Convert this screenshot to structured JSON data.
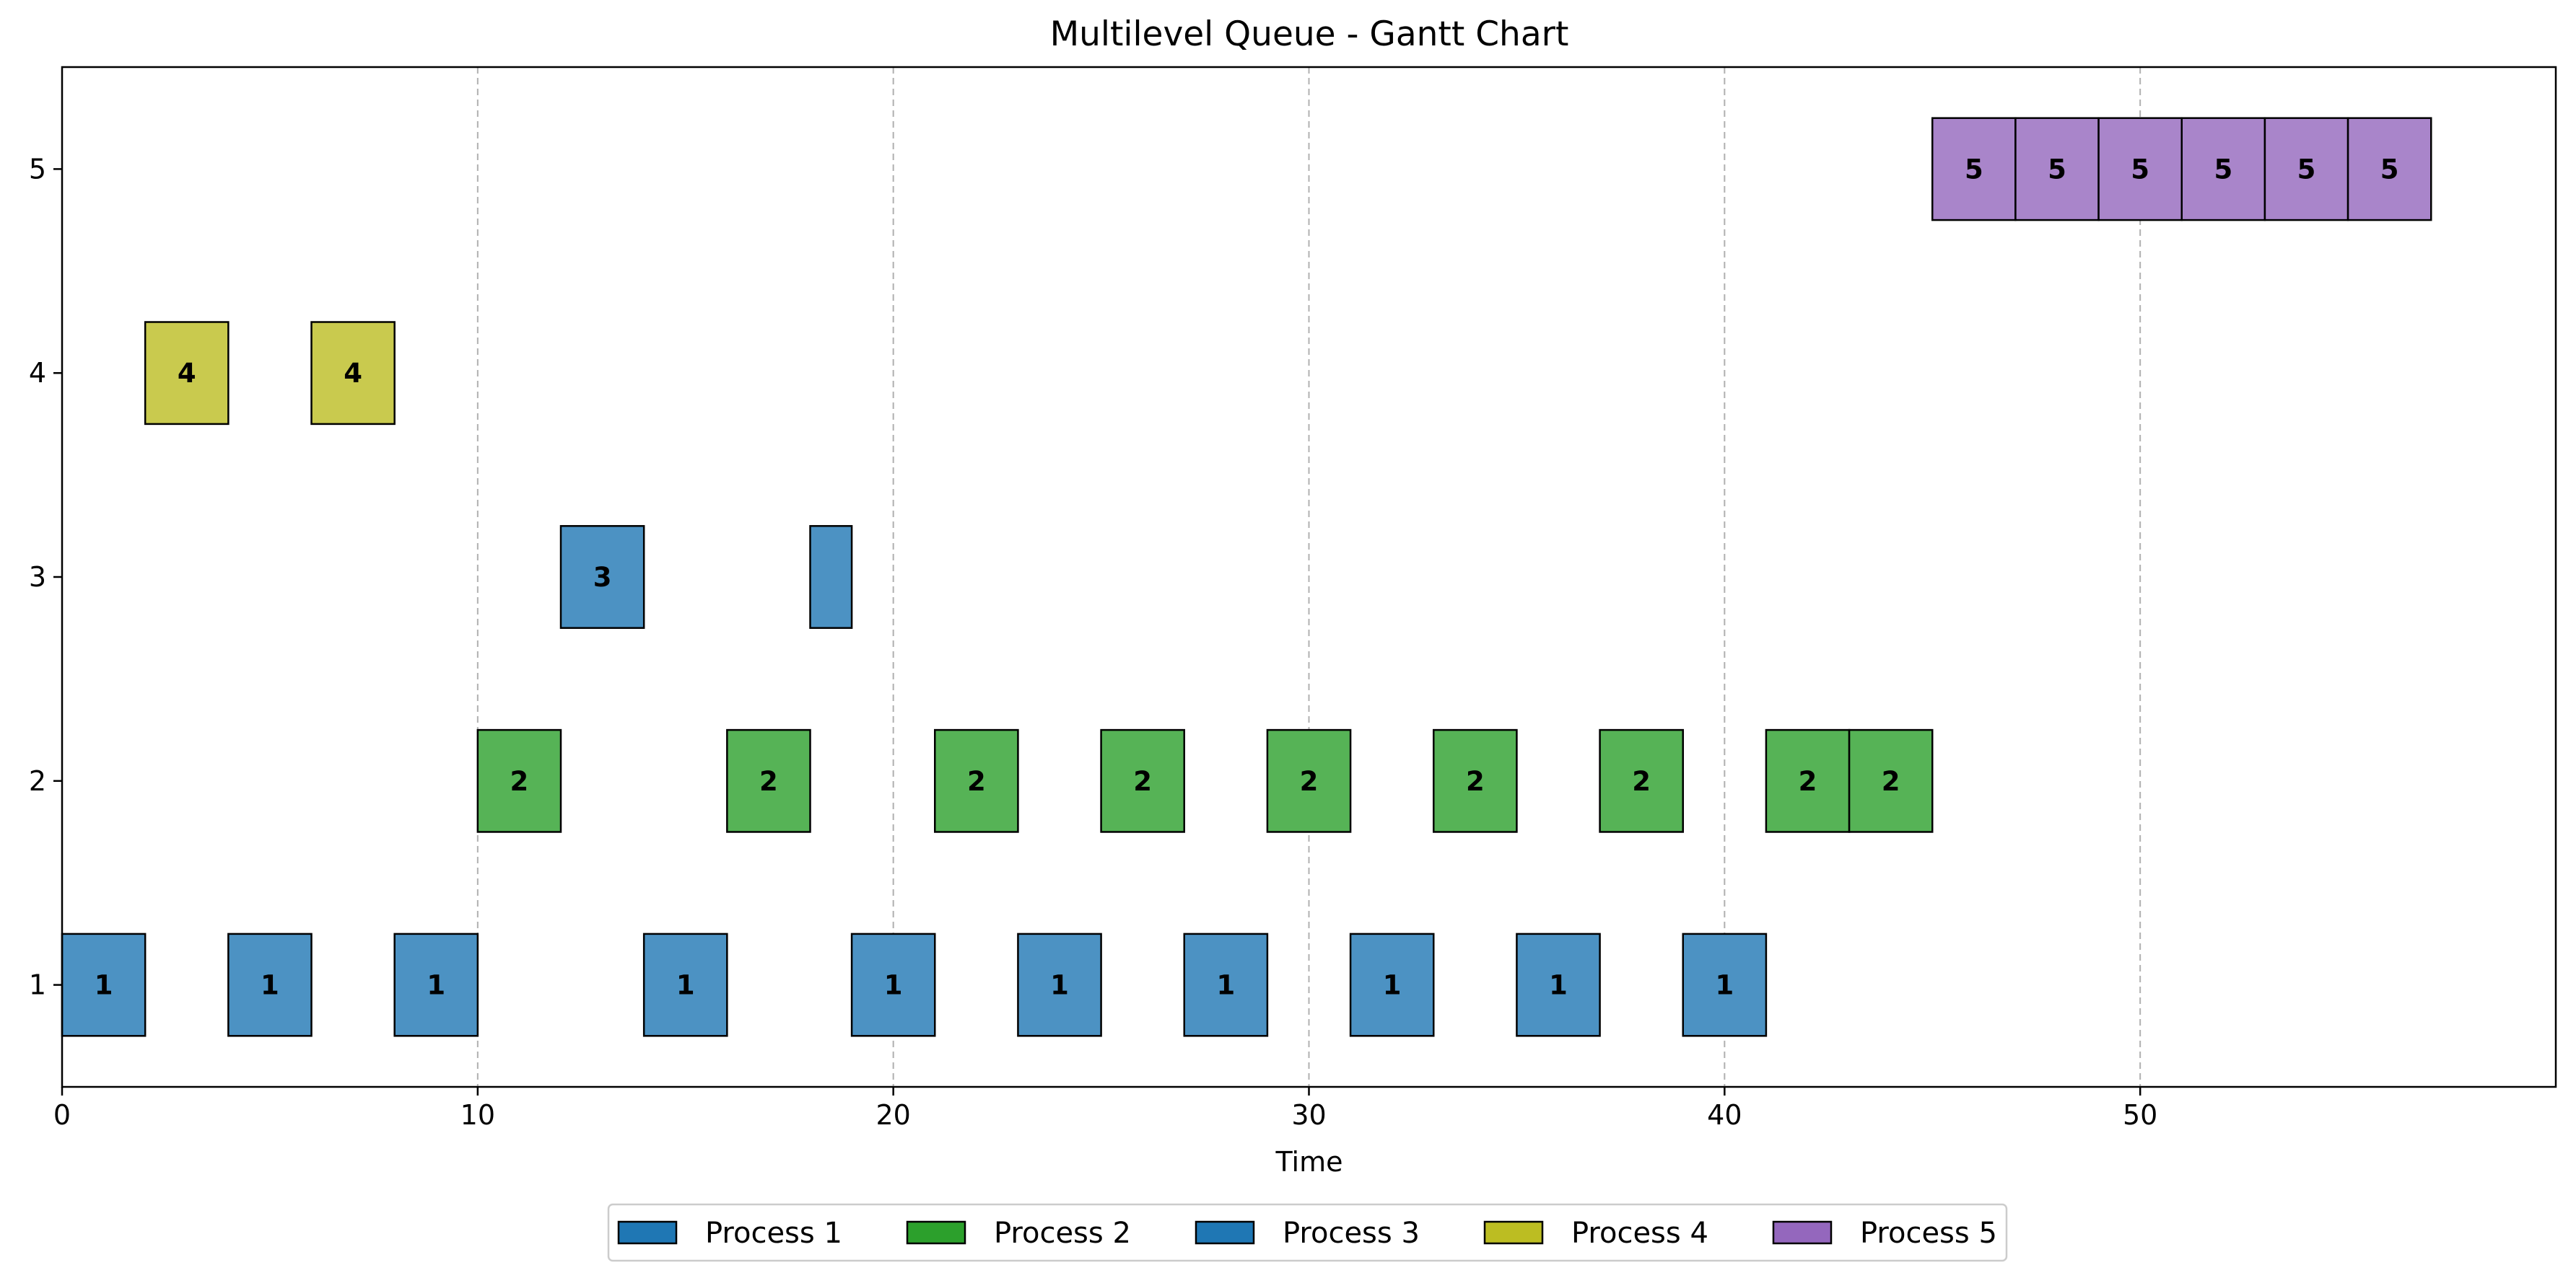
{
  "chart_data": {
    "type": "gantt",
    "title": "Multilevel Queue - Gantt Chart",
    "xlabel": "Time",
    "ylabel": "",
    "xlim": [
      0,
      60
    ],
    "ylim": [
      0.5,
      5.5
    ],
    "x_ticks": [
      0,
      10,
      20,
      30,
      40,
      50
    ],
    "y_ticks": [
      1,
      2,
      3,
      4,
      5
    ],
    "grid": "vertical dashed at x ticks",
    "legend_placement": "bottom-center below axes",
    "legend": [
      {
        "label": "Process 1",
        "color": "#1f77b4"
      },
      {
        "label": "Process 2",
        "color": "#2ca02c"
      },
      {
        "label": "Process 3",
        "color": "#1f77b4"
      },
      {
        "label": "Process 4",
        "color": "#bcbd22"
      },
      {
        "label": "Process 5",
        "color": "#9467bd"
      }
    ],
    "series": [
      {
        "name": "Process 1",
        "queue": 1,
        "color": "#1f77b4",
        "segments": [
          [
            0,
            2,
            "1"
          ],
          [
            4,
            6,
            "1"
          ],
          [
            8,
            10,
            "1"
          ],
          [
            14,
            16,
            "1"
          ],
          [
            19,
            21,
            "1"
          ],
          [
            23,
            25,
            "1"
          ],
          [
            27,
            29,
            "1"
          ],
          [
            31,
            33,
            "1"
          ],
          [
            35,
            37,
            "1"
          ],
          [
            39,
            41,
            "1"
          ]
        ]
      },
      {
        "name": "Process 2",
        "queue": 2,
        "color": "#2ca02c",
        "segments": [
          [
            10,
            12,
            "2"
          ],
          [
            16,
            18,
            "2"
          ],
          [
            21,
            23,
            "2"
          ],
          [
            25,
            27,
            "2"
          ],
          [
            29,
            31,
            "2"
          ],
          [
            33,
            35,
            "2"
          ],
          [
            37,
            39,
            "2"
          ],
          [
            41,
            43,
            "2"
          ],
          [
            43,
            45,
            "2"
          ]
        ]
      },
      {
        "name": "Process 3",
        "queue": 3,
        "color": "#1f77b4",
        "segments": [
          [
            12,
            14,
            "3"
          ],
          [
            18,
            19,
            ""
          ]
        ]
      },
      {
        "name": "Process 4",
        "queue": 4,
        "color": "#bcbd22",
        "segments": [
          [
            2,
            4,
            "4"
          ],
          [
            6,
            8,
            "4"
          ]
        ]
      },
      {
        "name": "Process 5",
        "queue": 5,
        "color": "#9467bd",
        "segments": [
          [
            45,
            47,
            "5"
          ],
          [
            47,
            49,
            "5"
          ],
          [
            49,
            51,
            "5"
          ],
          [
            51,
            53,
            "5"
          ],
          [
            53,
            55,
            "5"
          ],
          [
            55,
            57,
            "5"
          ]
        ]
      }
    ]
  }
}
